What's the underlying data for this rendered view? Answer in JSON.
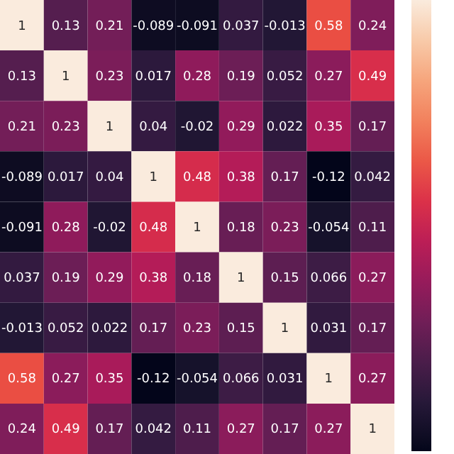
{
  "chart_data": {
    "type": "heatmap",
    "categories": [
      null,
      null,
      null,
      null,
      null,
      null,
      null,
      null,
      null
    ],
    "y_categories": [
      null,
      null,
      null,
      null,
      null,
      null,
      null,
      null,
      null
    ],
    "cells": [
      [
        1,
        0.13,
        0.21,
        -0.089,
        -0.091,
        0.037,
        -0.013,
        0.58,
        0.24
      ],
      [
        0.13,
        1,
        0.23,
        0.017,
        0.28,
        0.19,
        0.052,
        0.27,
        0.49
      ],
      [
        0.21,
        0.23,
        1,
        0.04,
        -0.02,
        0.29,
        0.022,
        0.35,
        0.17
      ],
      [
        -0.089,
        0.017,
        0.04,
        1,
        0.48,
        0.38,
        0.17,
        -0.12,
        0.042
      ],
      [
        -0.091,
        0.28,
        -0.02,
        0.48,
        1,
        0.18,
        0.23,
        -0.054,
        0.11
      ],
      [
        0.037,
        0.19,
        0.29,
        0.38,
        0.18,
        1,
        0.15,
        0.066,
        0.27
      ],
      [
        -0.013,
        0.052,
        0.022,
        0.17,
        0.23,
        0.15,
        1,
        0.031,
        0.17
      ],
      [
        0.58,
        0.27,
        0.35,
        -0.12,
        -0.054,
        0.066,
        0.031,
        1,
        0.27
      ],
      [
        0.24,
        0.49,
        0.17,
        0.042,
        0.11,
        0.27,
        0.17,
        0.27,
        1
      ]
    ],
    "data_labels": true
  }
}
